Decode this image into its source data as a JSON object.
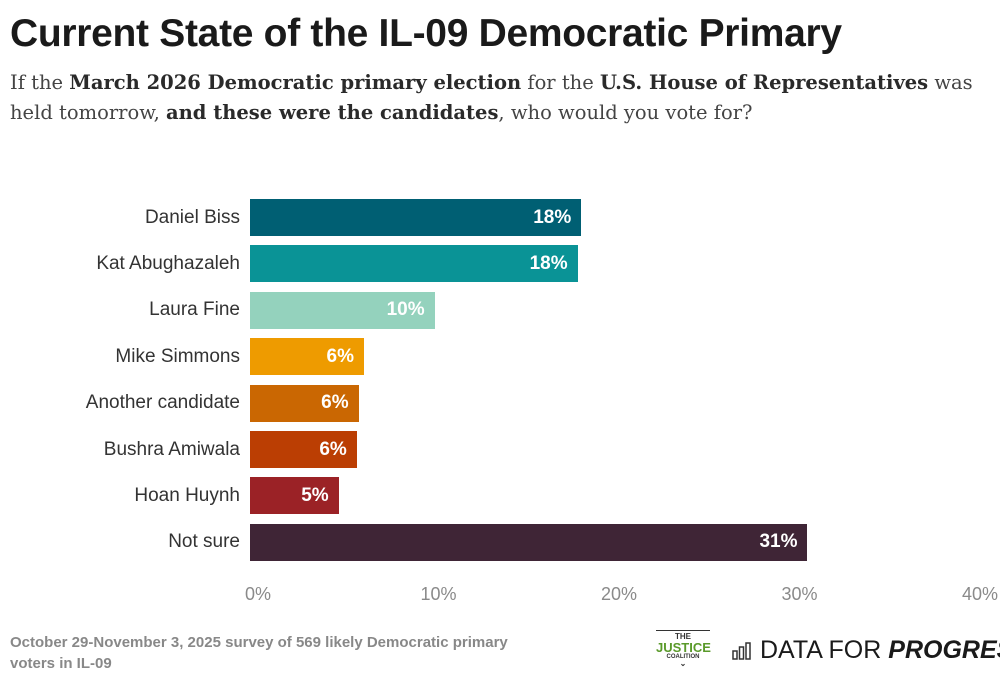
{
  "title": "Current State of the IL-09 Democratic Primary",
  "subtitle_segments": [
    {
      "text": "If the ",
      "bold": false
    },
    {
      "text": "March 2026 Democratic primary election",
      "bold": true
    },
    {
      "text": " for the ",
      "bold": false
    },
    {
      "text": "U.S. House of Representatives",
      "bold": true
    },
    {
      "text": " was held tomorrow, ",
      "bold": false
    },
    {
      "text": "and these were the candidates",
      "bold": true
    },
    {
      "text": ", who would you vote for?",
      "bold": false
    }
  ],
  "chart_data": {
    "type": "bar",
    "orientation": "horizontal",
    "categories": [
      "Daniel Biss",
      "Kat Abughazaleh",
      "Laura Fine",
      "Mike Simmons",
      "Another candidate",
      "Bushra Amiwala",
      "Hoan Huynh",
      "Not sure"
    ],
    "values": [
      18.3,
      18.1,
      10.2,
      6.3,
      6.0,
      5.9,
      4.9,
      30.8
    ],
    "data_labels": [
      "18%",
      "18%",
      "10%",
      "6%",
      "6%",
      "6%",
      "5%",
      "31%"
    ],
    "colors": [
      "#005f73",
      "#0a9396",
      "#94d2bd",
      "#ee9b00",
      "#ca6702",
      "#bb3e03",
      "#9b2226",
      "#3f2536"
    ],
    "xlim": [
      0,
      40
    ],
    "xticks": [
      "0%",
      "10%",
      "20%",
      "30%",
      "40%"
    ],
    "grid": false
  },
  "footer": "October 29-November 3, 2025 survey of 569 likely Democratic primary voters in IL-09",
  "logos": {
    "justice_coalition": [
      "THE",
      "JUSTICE",
      "COALITION"
    ],
    "dfp_plain": "DATA FOR",
    "dfp_italic": "PROGRESS"
  }
}
